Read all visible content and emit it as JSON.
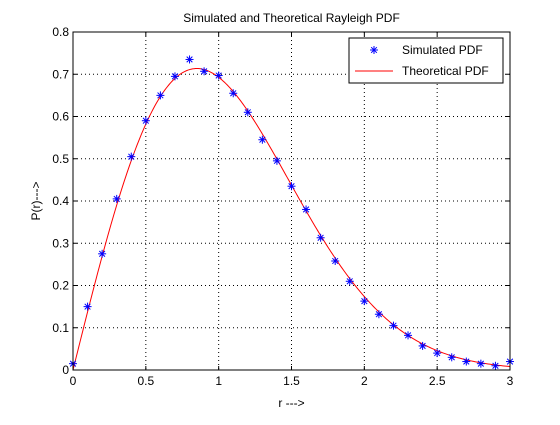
{
  "chart_data": {
    "type": "line",
    "title": "Simulated and Theoretical Rayleigh PDF",
    "xlabel": "r --->",
    "ylabel": "P(r)--->",
    "xlim": [
      0,
      3
    ],
    "ylim": [
      0,
      0.8
    ],
    "xticks": [
      0,
      0.5,
      1,
      1.5,
      2,
      2.5,
      3
    ],
    "xtick_labels": [
      "0",
      "0.5",
      "1",
      "1.5",
      "2",
      "2.5",
      "3"
    ],
    "yticks": [
      0,
      0.1,
      0.2,
      0.3,
      0.4,
      0.5,
      0.6,
      0.7,
      0.8
    ],
    "ytick_labels": [
      "0",
      "0.1",
      "0.2",
      "0.3",
      "0.4",
      "0.5",
      "0.6",
      "0.7",
      "0.8"
    ],
    "grid": true,
    "legend_position": "top-right",
    "series": [
      {
        "name": "Simulated PDF",
        "style": "scatter",
        "marker": "asterisk",
        "color": "#0000ff",
        "x": [
          0,
          0.1,
          0.2,
          0.3,
          0.4,
          0.5,
          0.6,
          0.7,
          0.8,
          0.9,
          1.0,
          1.1,
          1.2,
          1.3,
          1.4,
          1.5,
          1.6,
          1.7,
          1.8,
          1.9,
          2.0,
          2.1,
          2.2,
          2.3,
          2.4,
          2.5,
          2.6,
          2.7,
          2.8,
          2.9,
          3.0
        ],
        "y": [
          0.015,
          0.15,
          0.275,
          0.405,
          0.505,
          0.59,
          0.65,
          0.695,
          0.735,
          0.707,
          0.697,
          0.655,
          0.61,
          0.545,
          0.495,
          0.435,
          0.38,
          0.313,
          0.258,
          0.21,
          0.163,
          0.132,
          0.105,
          0.082,
          0.057,
          0.04,
          0.03,
          0.02,
          0.015,
          0.01,
          0.02
        ]
      },
      {
        "name": "Theoretical PDF",
        "style": "line",
        "color": "#ff0000",
        "formula": "(r/s^2)*exp(-r^2/(2*s^2))",
        "sigma": 0.85,
        "x_start": 0,
        "x_end": 3
      }
    ]
  }
}
